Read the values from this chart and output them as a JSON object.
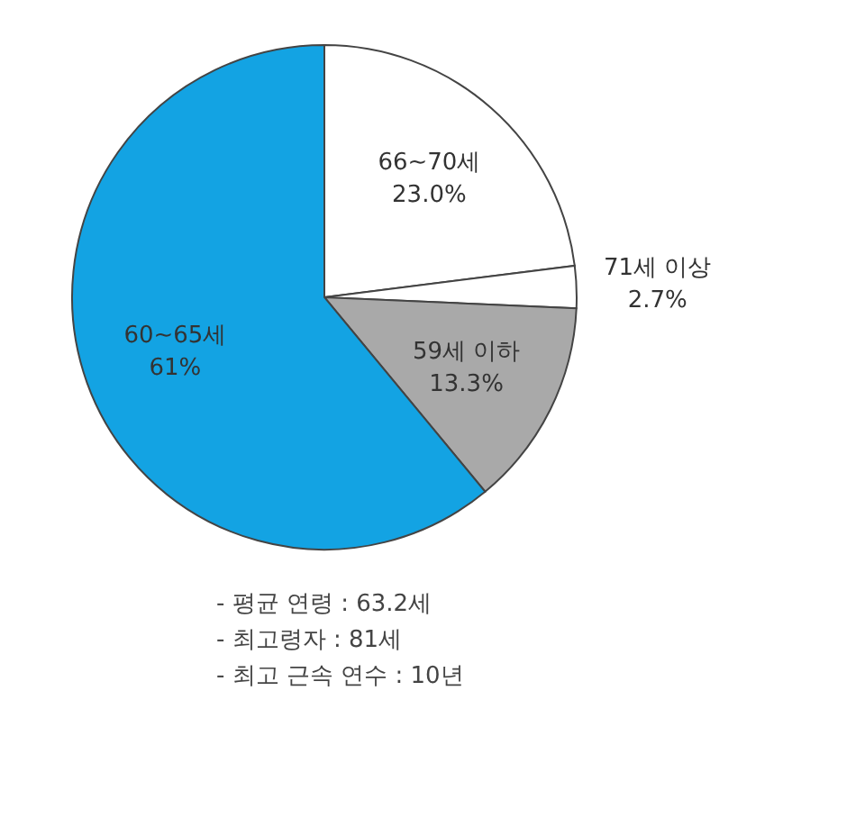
{
  "chart_data": {
    "type": "pie",
    "categories": [
      "66~70세",
      "71세 이상",
      "59세 이하",
      "60~65세"
    ],
    "values": [
      23.0,
      2.7,
      13.3,
      61
    ],
    "value_labels": [
      "23.0%",
      "2.7%",
      "13.3%",
      "61%"
    ],
    "colors": [
      "#ffffff",
      "#ffffff",
      "#a9a9a9",
      "#13a3e3"
    ],
    "annotations": [
      "- 평균 연령 : 63.2세",
      "- 최고령자 : 81세",
      "- 최고 근속 연수 : 10년"
    ]
  }
}
